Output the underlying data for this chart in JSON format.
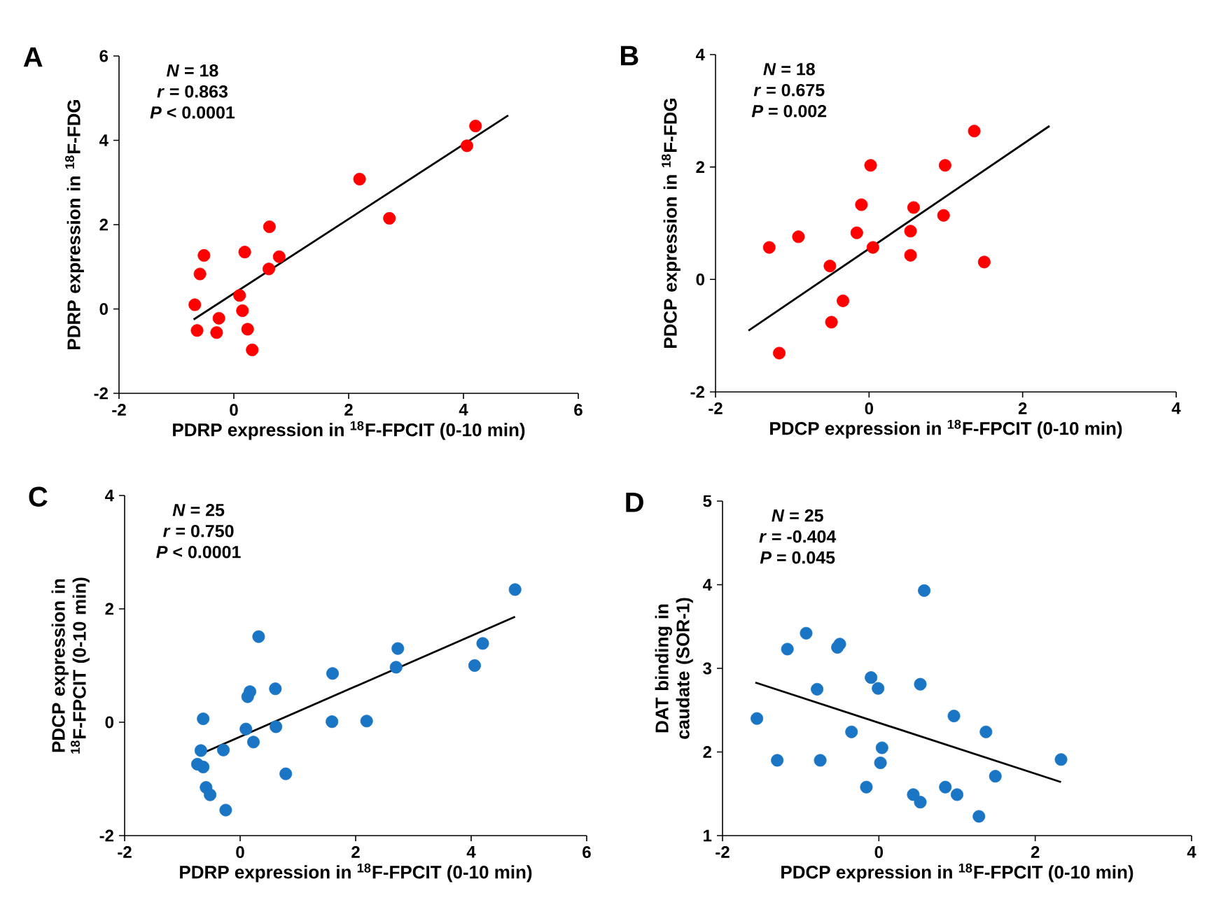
{
  "chart_data": [
    {
      "type": "scatter",
      "title": "A",
      "xlabel": "PDRP expression in $^{18}$F-FPCIT (0-10 min)",
      "ylabel": "PDRP expression in $^{18}$F-FDG",
      "xlim": [
        -2,
        6
      ],
      "ylim": [
        -2,
        6
      ],
      "xticks": [
        -2,
        0,
        2,
        4,
        6
      ],
      "yticks": [
        -2,
        0,
        2,
        4,
        6
      ],
      "annotations": [
        "*N* = 18",
        "*r* = 0.863",
        "*P* < 0.0001"
      ],
      "series": [
        {
          "type": "scatter",
          "marker": "circle",
          "color": "#ff0000",
          "x": [
            -0.68,
            -0.64,
            -0.59,
            -0.52,
            -0.3,
            -0.26,
            0.1,
            0.15,
            0.19,
            0.24,
            0.32,
            0.61,
            0.62,
            0.79,
            2.19,
            2.71,
            4.06,
            4.21
          ],
          "values": [
            0.1,
            -0.51,
            0.83,
            1.27,
            -0.56,
            -0.22,
            0.32,
            -0.04,
            1.35,
            -0.48,
            -0.97,
            0.95,
            1.95,
            1.24,
            3.08,
            2.15,
            3.87,
            4.34
          ]
        },
        {
          "type": "line",
          "color": "#000000",
          "x": [
            -0.7,
            4.78
          ],
          "values": [
            -0.25,
            4.59
          ]
        }
      ]
    },
    {
      "type": "scatter",
      "title": "B",
      "xlabel": "PDCP expression in $^{18}$F-FPCIT (0-10 min)",
      "ylabel": "PDCP expression in $^{18}$F-FDG",
      "xlim": [
        -2,
        4
      ],
      "ylim": [
        -2,
        4
      ],
      "xticks": [
        -2,
        0,
        2,
        4
      ],
      "yticks": [
        -2,
        0,
        2,
        4
      ],
      "annotations": [
        "*N* = 18",
        "*r* = 0.675",
        "*P* = 0.002"
      ],
      "series": [
        {
          "type": "scatter",
          "marker": "circle",
          "color": "#ff0000",
          "x": [
            -1.3,
            -1.17,
            -0.92,
            -0.51,
            -0.49,
            -0.34,
            -0.16,
            -0.1,
            0.02,
            0.05,
            0.54,
            0.54,
            0.58,
            0.97,
            0.99,
            1.37,
            1.5
          ],
          "values": [
            0.57,
            -1.31,
            0.76,
            0.24,
            -0.76,
            -0.38,
            0.83,
            1.33,
            2.03,
            0.57,
            0.86,
            0.43,
            1.28,
            1.14,
            2.03,
            2.64,
            0.31
          ]
        },
        {
          "type": "line",
          "color": "#000000",
          "x": [
            -1.57,
            2.35
          ],
          "values": [
            -0.91,
            2.73
          ]
        }
      ]
    },
    {
      "type": "scatter",
      "title": "C",
      "xlabel": "PDRP expression in $^{18}$F-FPCIT (0-10 min)",
      "ylabel": "PDCP expression in $^{18}$F-FPCIT (0-10 min)",
      "xlim": [
        -2,
        6
      ],
      "ylim": [
        -2,
        4
      ],
      "xticks": [
        -2,
        0,
        2,
        4,
        6
      ],
      "yticks": [
        -2,
        0,
        2,
        4
      ],
      "annotations": [
        "*N* = 25",
        "*r* = 0.750",
        "*P* < 0.0001"
      ],
      "series": [
        {
          "type": "scatter",
          "marker": "circle",
          "color": "#1a75c4",
          "x": [
            -0.64,
            -0.68,
            -0.74,
            -0.64,
            -0.59,
            -0.52,
            -0.29,
            -0.25,
            0.1,
            0.13,
            0.17,
            0.23,
            0.32,
            0.61,
            0.62,
            0.79,
            1.59,
            1.6,
            2.19,
            2.7,
            2.73,
            4.06,
            4.2,
            4.76
          ],
          "values": [
            0.06,
            -0.5,
            -0.74,
            -0.79,
            -1.15,
            -1.28,
            -0.49,
            -1.55,
            -0.12,
            0.45,
            0.54,
            -0.35,
            1.51,
            0.59,
            -0.08,
            -0.91,
            0.01,
            0.86,
            0.02,
            0.97,
            1.3,
            1.0,
            1.39,
            2.34
          ]
        },
        {
          "type": "line",
          "color": "#000000",
          "x": [
            -0.73,
            4.76
          ],
          "values": [
            -0.58,
            1.86
          ]
        }
      ]
    },
    {
      "type": "scatter",
      "title": "D",
      "xlabel": "PDCP expression in $^{18}$F-FPCIT (0-10 min)",
      "ylabel": "DAT binding in caudate (SOR-1)",
      "xlim": [
        -2,
        4
      ],
      "ylim": [
        1,
        5
      ],
      "xticks": [
        -2,
        0,
        2,
        4
      ],
      "yticks": [
        1,
        2,
        3,
        4,
        5
      ],
      "annotations": [
        "*N* = 25",
        "*r* = -0.404",
        "*P* = 0.045"
      ],
      "series": [
        {
          "type": "scatter",
          "marker": "circle",
          "color": "#1a75c4",
          "x": [
            -1.56,
            -1.3,
            -1.17,
            -0.93,
            -0.79,
            -0.75,
            -0.53,
            -0.5,
            -0.35,
            -0.16,
            -0.1,
            -0.01,
            0.02,
            0.04,
            0.44,
            0.53,
            0.53,
            0.58,
            0.85,
            0.96,
            1.0,
            1.28,
            1.37,
            1.49,
            2.33
          ],
          "values": [
            2.4,
            1.9,
            3.23,
            3.42,
            2.75,
            1.9,
            3.25,
            3.29,
            2.24,
            1.58,
            2.89,
            2.76,
            1.87,
            2.05,
            1.49,
            1.4,
            2.81,
            3.93,
            1.58,
            2.43,
            1.49,
            1.23,
            2.24,
            1.71,
            1.91
          ]
        },
        {
          "type": "line",
          "color": "#000000",
          "x": [
            -1.58,
            2.33
          ],
          "values": [
            2.83,
            1.64
          ]
        }
      ]
    }
  ]
}
